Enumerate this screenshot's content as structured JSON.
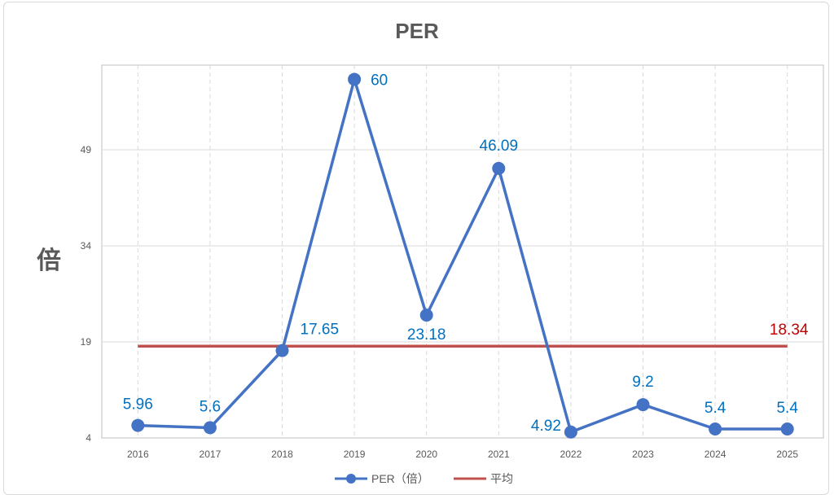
{
  "chart_data": {
    "type": "line",
    "title": "PER",
    "xlabel": "",
    "ylabel": "倍",
    "x": [
      "2016",
      "2017",
      "2018",
      "2019",
      "2020",
      "2021",
      "2022",
      "2023",
      "2024",
      "2025"
    ],
    "yticks": [
      "4",
      "19",
      "34",
      "49"
    ],
    "ylim": [
      4,
      60
    ],
    "grid": true,
    "legend_position": "bottom",
    "series": [
      {
        "name": "PER（倍）",
        "color": "#4472c4",
        "values": [
          5.96,
          5.6,
          17.65,
          60,
          23.18,
          46.09,
          4.92,
          9.2,
          5.4,
          5.4
        ],
        "labels": [
          "5.96",
          "5.6",
          "17.65",
          "60",
          "23.18",
          "46.09",
          "4.92",
          "9.2",
          "5.4",
          "5.4"
        ]
      },
      {
        "name": "平均",
        "color": "#c0504d",
        "values": [
          18.34,
          18.34,
          18.34,
          18.34,
          18.34,
          18.34,
          18.34,
          18.34,
          18.34,
          18.34
        ],
        "label": "18.34"
      }
    ],
    "colors": {
      "title": "#595959",
      "axis_text": "#595959",
      "series_label": "#0070c0",
      "average_label": "#c00000"
    }
  }
}
